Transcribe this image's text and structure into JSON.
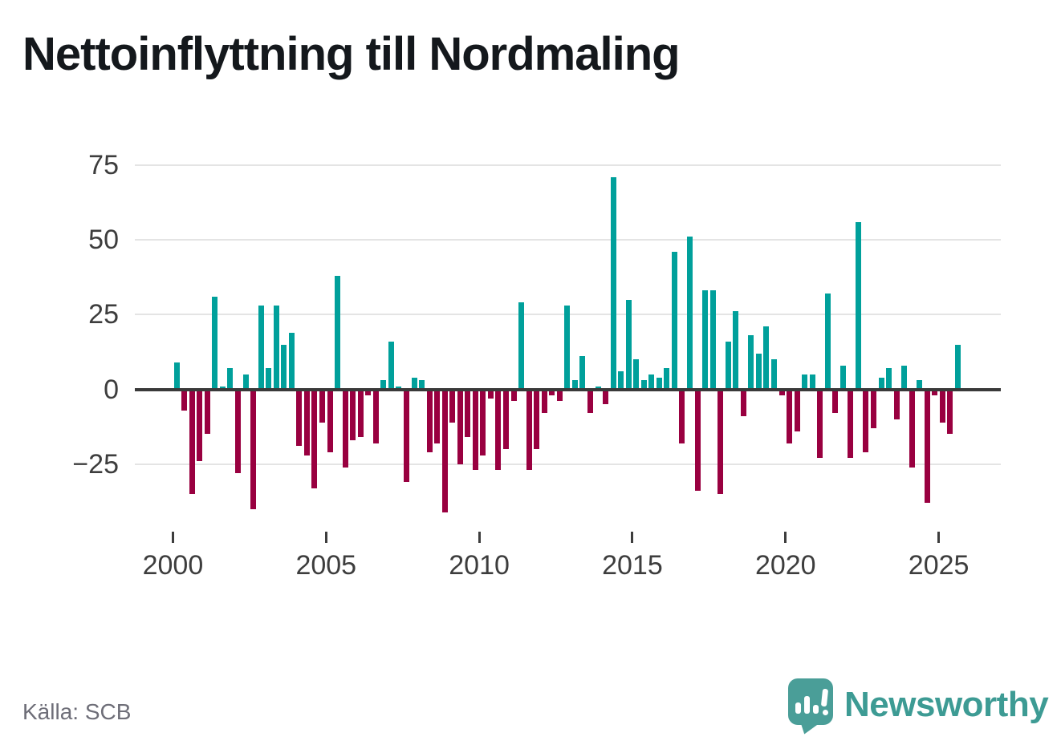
{
  "title": "Nettoinflyttning till Nordmaling",
  "source": "Källa: SCB",
  "branding": {
    "name": "Newsworthy",
    "logo_icon": "speech-bubble-bar-chart-icon",
    "text_color": "#3d9b94",
    "badge_color": "#4a9e98"
  },
  "colors": {
    "positive_bar": "#00a09b",
    "negative_bar": "#990040",
    "gridline": "#e4e4e4",
    "zero_line": "#3a3a3a",
    "axis_text": "#3d3d3d",
    "title_text": "#14181c",
    "source_text": "#6e6e78"
  },
  "chart_data": {
    "type": "bar",
    "title": "Nettoinflyttning till Nordmaling",
    "xlabel": "",
    "ylabel": "",
    "x_unit": "quarter",
    "start_year": 2000,
    "start_quarter": 1,
    "end_year": 2025,
    "end_quarter": 3,
    "ylim": [
      -45,
      80
    ],
    "grid": "horizontal",
    "legend": "none",
    "y_ticks": [
      {
        "value": 75,
        "label": "75"
      },
      {
        "value": 50,
        "label": "50"
      },
      {
        "value": 25,
        "label": "25"
      },
      {
        "value": 0,
        "label": "0"
      },
      {
        "value": -25,
        "label": "−25"
      }
    ],
    "x_ticks": [
      {
        "value": 2000,
        "label": "2000"
      },
      {
        "value": 2005,
        "label": "2005"
      },
      {
        "value": 2010,
        "label": "2010"
      },
      {
        "value": 2015,
        "label": "2015"
      },
      {
        "value": 2020,
        "label": "2020"
      },
      {
        "value": 2025,
        "label": "2025"
      }
    ],
    "values": [
      9,
      -7,
      -35,
      -24,
      -15,
      31,
      1,
      7,
      -28,
      5,
      -40,
      28,
      7,
      28,
      15,
      19,
      -19,
      -22,
      -33,
      -11,
      -21,
      38,
      -26,
      -17,
      -16,
      -2,
      -18,
      3,
      16,
      1,
      -31,
      4,
      3,
      -21,
      -18,
      -41,
      -11,
      -25,
      -16,
      -27,
      -22,
      -3,
      -27,
      -20,
      -4,
      29,
      -27,
      -20,
      -8,
      -2,
      -4,
      28,
      3,
      11,
      -8,
      1,
      -5,
      71,
      6,
      30,
      10,
      3,
      5,
      4,
      7,
      46,
      -18,
      51,
      -34,
      33,
      33,
      -35,
      16,
      26,
      -9,
      18,
      12,
      21,
      10,
      -2,
      -18,
      -14,
      5,
      5,
      -23,
      32,
      -8,
      8,
      -23,
      56,
      -21,
      -13,
      4,
      7,
      -10,
      8,
      -26,
      3,
      -38,
      -2,
      -11,
      -15,
      15
    ]
  }
}
